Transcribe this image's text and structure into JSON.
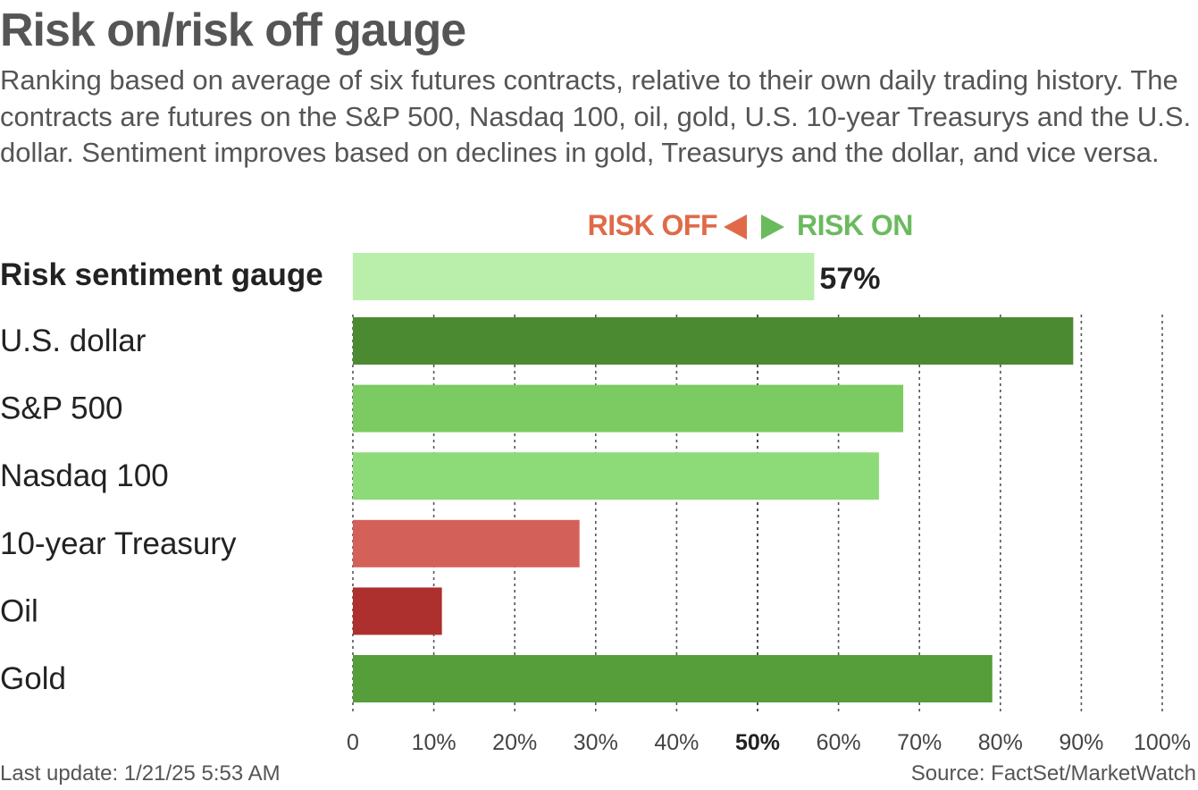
{
  "chart_data": {
    "type": "bar",
    "orientation": "horizontal",
    "title": "Risk on/risk off gauge",
    "subtitle": "Ranking based on average of six futures contracts, relative to their own daily trading history. The contracts are futures on the S&P 500, Nasdaq 100, oil, gold, U.S. 10-year Treasurys and the U.S. dollar. Sentiment improves based on declines in gold, Treasurys and the dollar, and vice versa.",
    "legend": {
      "risk_off": "RISK OFF",
      "risk_on": "RISK ON"
    },
    "gauge": {
      "label": "Risk sentiment gauge",
      "value": 57,
      "value_label": "57%",
      "color": "#b9efaa"
    },
    "categories": [
      "U.S. dollar",
      "S&P 500",
      "Nasdaq 100",
      "10-year Treasury",
      "Oil",
      "Gold"
    ],
    "values": [
      89,
      68,
      65,
      28,
      11,
      79
    ],
    "colors": [
      "#4c8a32",
      "#7bca62",
      "#8cdb78",
      "#d4605a",
      "#ad302e",
      "#559e3a"
    ],
    "xlim": [
      0,
      100
    ],
    "x_ticks": [
      0,
      10,
      20,
      30,
      40,
      50,
      60,
      70,
      80,
      90,
      100
    ],
    "x_tick_labels": [
      "0",
      "10%",
      "20%",
      "30%",
      "40%",
      "50%",
      "60%",
      "70%",
      "80%",
      "90%",
      "100%"
    ],
    "bold_tick": "50%",
    "grid": "dotted vertical"
  },
  "footer": {
    "last_update": "Last update: 1/21/25 5:53  AM",
    "source": "Source: FactSet/MarketWatch"
  },
  "colors": {
    "risk_off": "#e06a48",
    "risk_on": "#6aba5e",
    "text": "#555555"
  }
}
